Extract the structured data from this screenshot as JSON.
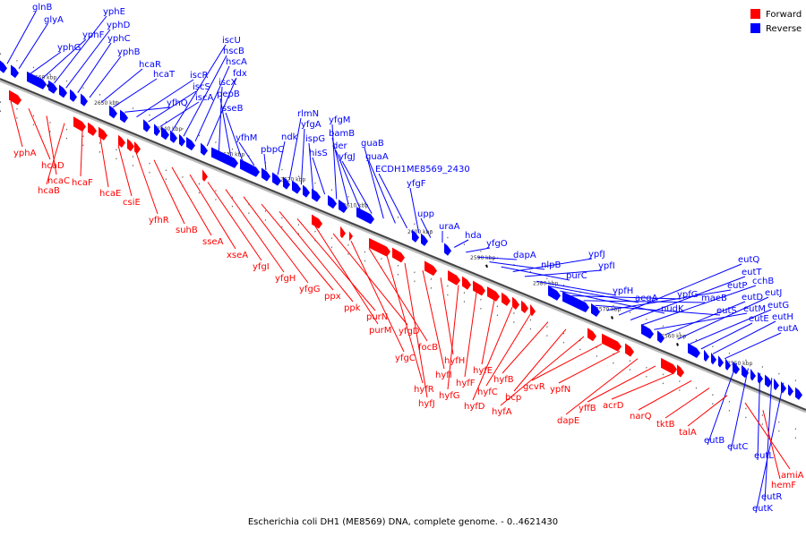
{
  "caption": "Escherichia coli DH1 (ME8569) DNA, complete genome. - 0..4621430",
  "colors": {
    "forward": "#ff0000",
    "reverse": "#0000ff",
    "axis": "#888888"
  },
  "legend": [
    {
      "label": "Forward",
      "strand": "forward"
    },
    {
      "label": "Reverse",
      "strand": "reverse"
    }
  ],
  "ticks": [
    "2660 kbp",
    "2650 kbp",
    "2640 kbp",
    "2630 kbp",
    "2620 kbp",
    "2610 kbp",
    "2600 kbp",
    "2590 kbp",
    "2580 kbp",
    "2570 kbp",
    "2560 kbp",
    "2550 kbp"
  ],
  "reverse_genes": [
    "glnB",
    "glyA",
    "yphG",
    "yphF",
    "yphE",
    "yphD",
    "yphC",
    "yphB",
    "hcaR",
    "hcaT",
    "yfhQ",
    "iscR",
    "iscS",
    "iscA",
    "iscU",
    "hscB",
    "hscA",
    "fdx",
    "iscX",
    "pepB",
    "sseB",
    "yfhM",
    "pbpC",
    "ndk",
    "rlmN",
    "yfgA",
    "ispG",
    "hisS",
    "yfgM",
    "bamB",
    "der",
    "yfgJ",
    "guaB",
    "guaA",
    "ECDH1ME8569_2430",
    "yfgF",
    "upp",
    "uraA",
    "hda",
    "yfgO",
    "dapA",
    "nlpB",
    "purC",
    "ypfJ",
    "ypfI",
    "ypfH",
    "aegA",
    "nudK",
    "ypfG",
    "maeB",
    "eutS",
    "eutP",
    "eutQ",
    "eutT",
    "cchB",
    "eutM",
    "eutD",
    "eutJ",
    "eutG",
    "eutE",
    "eutH",
    "eutA",
    "eutB",
    "eutC",
    "eutL",
    "eutR",
    "eutK"
  ],
  "forward_genes": [
    "yphA",
    "hcaD",
    "hcaC",
    "hcaB",
    "hcaF",
    "hcaE",
    "csiE",
    "yfhR",
    "suhB",
    "sseA",
    "xseA",
    "yfgI",
    "yfgH",
    "yfgG",
    "ppx",
    "ppk",
    "purN",
    "purM",
    "yfgD",
    "yfgC",
    "focB",
    "hyfR",
    "hyfJ",
    "hyfI",
    "hyfH",
    "hyfG",
    "hyfF",
    "hyfE",
    "hyfD",
    "hyfC",
    "hyfB",
    "bcp",
    "hyfA",
    "gcvR",
    "ypfN",
    "dapE",
    "yffB",
    "acrD",
    "narQ",
    "tktB",
    "talA",
    "amiA",
    "hemF"
  ]
}
